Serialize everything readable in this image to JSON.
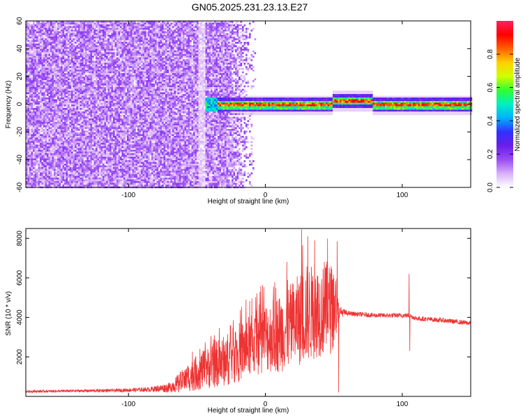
{
  "title": "GN05.2025.231.23.13.E27",
  "chart_data": [
    {
      "type": "heatmap",
      "title": "GN05.2025.231.23.13.E27",
      "xlabel": "Height of straight line (km)",
      "ylabel": "Frequency (Hz)",
      "xlim": [
        -175,
        150
      ],
      "ylim": [
        -60,
        60
      ],
      "x_ticks": [
        -100,
        0,
        100
      ],
      "y_ticks": [
        -60,
        -40,
        -20,
        0,
        20,
        40,
        60
      ],
      "colorbar": {
        "label": "Normalized spectral amplitude",
        "range": [
          0,
          1
        ],
        "ticks": [
          0.0,
          0.2,
          0.4,
          0.6,
          0.8
        ],
        "colormap": [
          "#ffffff",
          "#d8b0f8",
          "#9a4cf4",
          "#6a1ee8",
          "#3030ff",
          "#00b0ff",
          "#00f0c0",
          "#30ff30",
          "#d0ff00",
          "#ffd000",
          "#ff6000",
          "#ff0000",
          "#ff2060"
        ]
      },
      "features": {
        "noise_band_x": [
          -175,
          -15
        ],
        "signal_x": [
          -45,
          150
        ],
        "signal_center_freq": 0,
        "signal_hump": {
          "x": [
            48,
            78
          ],
          "freq": 3
        }
      }
    },
    {
      "type": "line",
      "xlabel": "Height of straight line (km)",
      "ylabel": "SNR (10 * v/v)",
      "xlim": [
        -175,
        150
      ],
      "ylim": [
        0,
        8500
      ],
      "x_ticks": [
        -100,
        0,
        100
      ],
      "y_ticks": [
        2000,
        4000,
        6000,
        8000
      ],
      "color": "#ee3333",
      "series": [
        {
          "envelope_x": [
            -175,
            -110,
            -85,
            -70,
            -60,
            -50,
            -40,
            -30,
            -20,
            -10,
            0,
            10,
            20,
            30,
            40,
            50,
            54,
            60,
            80,
            100,
            105,
            110,
            130,
            150
          ],
          "y_center": [
            250,
            300,
            350,
            450,
            800,
            1200,
            1500,
            1800,
            2200,
            2600,
            3000,
            3200,
            3600,
            4200,
            4300,
            4500,
            4300,
            4200,
            4100,
            4100,
            4100,
            3950,
            3850,
            3700
          ],
          "y_spread": [
            60,
            80,
            120,
            250,
            600,
            900,
            1100,
            1300,
            1500,
            1600,
            1800,
            2000,
            2200,
            2500,
            2300,
            2300,
            300,
            120,
            120,
            120,
            120,
            120,
            120,
            120
          ],
          "spikes": [
            {
              "x": 26.5,
              "y": 8450
            },
            {
              "x": 31.0,
              "y": 8100
            },
            {
              "x": 36.0,
              "y": 7900
            },
            {
              "x": 52.5,
              "y": 7850
            },
            {
              "x": 105.0,
              "y": 6200
            },
            {
              "x": 105.5,
              "y": 2300
            },
            {
              "x": 53.5,
              "y": 200
            }
          ]
        }
      ]
    }
  ]
}
